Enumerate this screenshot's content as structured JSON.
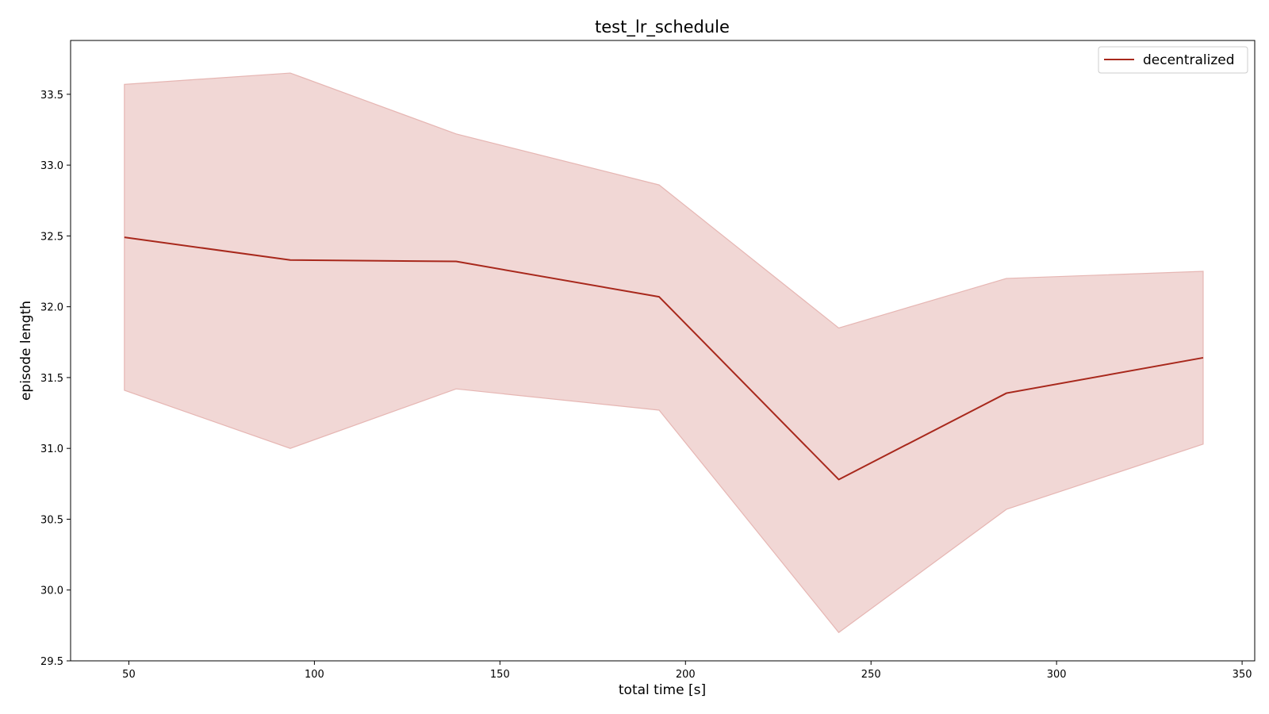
{
  "chart_data": {
    "type": "line",
    "title": "test_lr_schedule",
    "xlabel": "total time [s]",
    "ylabel": "episode length",
    "xlim": [
      34.3,
      353.4
    ],
    "ylim": [
      29.5,
      33.88
    ],
    "xticks": [
      50,
      100,
      150,
      200,
      250,
      300,
      350
    ],
    "xtick_labels": [
      "50",
      "100",
      "150",
      "200",
      "250",
      "300",
      "350"
    ],
    "yticks": [
      29.5,
      30.0,
      30.5,
      31.0,
      31.5,
      32.0,
      32.5,
      33.0,
      33.5
    ],
    "ytick_labels": [
      "29.5",
      "30.0",
      "30.5",
      "31.0",
      "31.5",
      "32.0",
      "32.5",
      "33.0",
      "33.5"
    ],
    "grid": false,
    "legend_position": "top-right",
    "series": [
      {
        "name": "decentralized",
        "color": "#a8281c",
        "band_color": "#e6b6b3",
        "x": [
          48.8,
          93.5,
          138.2,
          192.9,
          241.3,
          286.5,
          339.5
        ],
        "y": [
          32.49,
          32.33,
          32.32,
          32.07,
          30.78,
          31.39,
          31.64
        ],
        "lower": [
          31.41,
          31.0,
          31.42,
          31.27,
          29.7,
          30.57,
          31.03
        ],
        "upper": [
          33.57,
          33.65,
          33.22,
          32.86,
          31.85,
          32.2,
          32.25
        ]
      }
    ]
  }
}
